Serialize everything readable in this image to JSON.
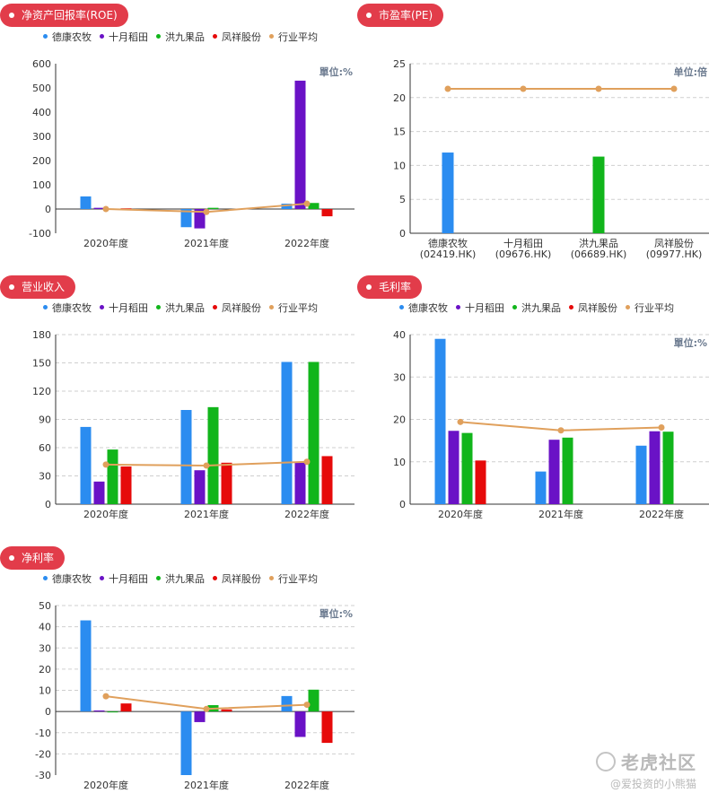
{
  "legend": [
    {
      "name": "德康农牧",
      "color": "#2b8cf0"
    },
    {
      "name": "十月稻田",
      "color": "#6a12c6"
    },
    {
      "name": "洪九果品",
      "color": "#11b51b"
    },
    {
      "name": "凤祥股份",
      "color": "#e60a0a"
    },
    {
      "name": "行业平均",
      "color": "#e0a05c"
    }
  ],
  "watermark": {
    "logo": "老虎社区",
    "author": "@爱投资的小熊猫"
  },
  "chart_data": [
    {
      "id": "roe",
      "type": "bar",
      "title": "净资产回报率(ROE)",
      "unit_label": "單位:%",
      "categories": [
        "2020年度",
        "2021年度",
        "2022年度"
      ],
      "ylim": [
        -100,
        600
      ],
      "ytick_labels": [
        "-100",
        "0",
        "100",
        "200",
        "300",
        "400",
        "500",
        "600"
      ],
      "grid": false,
      "series": [
        {
          "name": "德康农牧",
          "values": [
            52,
            -75,
            22
          ]
        },
        {
          "name": "十月稻田",
          "values": [
            5,
            -80,
            530
          ]
        },
        {
          "name": "洪九果品",
          "values": [
            0,
            5,
            25
          ]
        },
        {
          "name": "凤祥股份",
          "values": [
            3,
            null,
            -30
          ]
        }
      ],
      "line": {
        "name": "行业平均",
        "values": [
          0,
          -12,
          22
        ]
      }
    },
    {
      "id": "pe",
      "type": "bar",
      "title": "市盈率(PE)",
      "unit_label": "单位:倍",
      "categories": [
        "德康农牧 (02419.HK)",
        "十月稻田 (09676.HK)",
        "洪九果品 (06689.HK)",
        "凤祥股份 (09977.HK)"
      ],
      "ylim": [
        0,
        25
      ],
      "ytick_labels": [
        "0",
        "5",
        "10",
        "15",
        "20",
        "25"
      ],
      "grid": true,
      "values": [
        11.9,
        null,
        11.3,
        null
      ],
      "line": {
        "name": "行业平均",
        "values": [
          21.3,
          21.3,
          21.3,
          21.3
        ]
      }
    },
    {
      "id": "revenue",
      "type": "bar",
      "title": "营业收入",
      "unit_label": "",
      "categories": [
        "2020年度",
        "2021年度",
        "2022年度"
      ],
      "ylim": [
        0,
        180
      ],
      "ytick_labels": [
        "0",
        "30",
        "60",
        "90",
        "120",
        "150",
        "180"
      ],
      "grid": true,
      "series": [
        {
          "name": "德康农牧",
          "values": [
            82,
            100,
            151
          ]
        },
        {
          "name": "十月稻田",
          "values": [
            24,
            36,
            44
          ]
        },
        {
          "name": "洪九果品",
          "values": [
            58,
            103,
            151
          ]
        },
        {
          "name": "凤祥股份",
          "values": [
            40,
            44,
            51
          ]
        }
      ],
      "line": {
        "name": "行业平均",
        "values": [
          42,
          41,
          45
        ]
      }
    },
    {
      "id": "gross_margin",
      "type": "bar",
      "title": "毛利率",
      "unit_label": "單位:%",
      "categories": [
        "2020年度",
        "2021年度",
        "2022年度"
      ],
      "ylim": [
        0,
        40
      ],
      "ytick_labels": [
        "0",
        "10",
        "20",
        "30",
        "40"
      ],
      "grid": true,
      "series": [
        {
          "name": "德康农牧",
          "values": [
            39,
            7.7,
            13.8
          ]
        },
        {
          "name": "十月稻田",
          "values": [
            17.3,
            15.2,
            17.2
          ]
        },
        {
          "name": "洪九果品",
          "values": [
            16.8,
            15.7,
            17.1
          ]
        },
        {
          "name": "凤祥股份",
          "values": [
            10.3,
            null,
            null
          ]
        }
      ],
      "line": {
        "name": "行业平均",
        "values": [
          19.4,
          17.4,
          18.1
        ]
      }
    },
    {
      "id": "net_margin",
      "type": "bar",
      "title": "净利率",
      "unit_label": "單位:%",
      "categories": [
        "2020年度",
        "2021年度",
        "2022年度"
      ],
      "ylim": [
        -30,
        50
      ],
      "ytick_labels": [
        "-30",
        "-20",
        "-10",
        "0",
        "10",
        "20",
        "30",
        "40",
        "50"
      ],
      "grid": true,
      "series": [
        {
          "name": "德康农牧",
          "values": [
            43,
            -30,
            7.3
          ]
        },
        {
          "name": "十月稻田",
          "values": [
            0.5,
            -5,
            -12
          ]
        },
        {
          "name": "洪九果品",
          "values": [
            0,
            3,
            10.3
          ]
        },
        {
          "name": "凤祥股份",
          "values": [
            3.8,
            1,
            -14.8
          ]
        }
      ],
      "line": {
        "name": "行业平均",
        "values": [
          7.2,
          1.2,
          3.2
        ]
      }
    }
  ]
}
